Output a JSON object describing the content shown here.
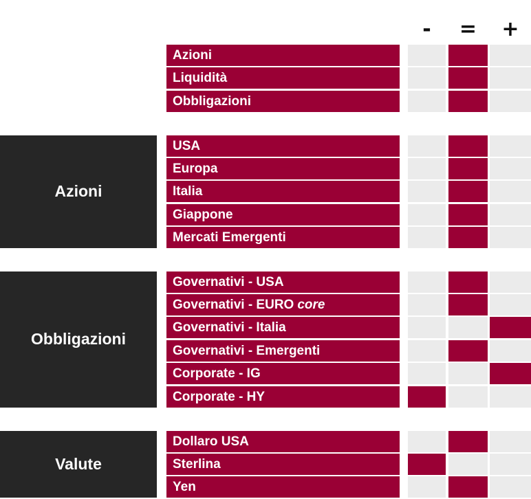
{
  "colors": {
    "accent": "#9a0035",
    "cell_off": "#ebebeb",
    "group_box": "#262626",
    "symbol": "#0f0f0f"
  },
  "chart_data": {
    "type": "table",
    "title": "",
    "columns": [
      {
        "id": "minus",
        "symbol": "-"
      },
      {
        "id": "equal",
        "symbol": "="
      },
      {
        "id": "plus",
        "symbol": "+"
      }
    ],
    "groups": [
      {
        "label": "",
        "rows": [
          {
            "label": "Azioni",
            "rating": "equal"
          },
          {
            "label": "Liquidità",
            "rating": "equal"
          },
          {
            "label": "Obbligazioni",
            "rating": "equal"
          }
        ]
      },
      {
        "label": "Azioni",
        "rows": [
          {
            "label": "USA",
            "rating": "equal"
          },
          {
            "label": "Europa",
            "rating": "equal"
          },
          {
            "label": "Italia",
            "rating": "equal"
          },
          {
            "label": "Giappone",
            "rating": "equal"
          },
          {
            "label": "Mercati Emergenti",
            "rating": "equal"
          }
        ]
      },
      {
        "label": "Obbligazioni",
        "rows": [
          {
            "label": "Governativi - USA",
            "rating": "equal"
          },
          {
            "label": "Governativi - EURO",
            "label_italic": "core",
            "rating": "equal"
          },
          {
            "label": "Governativi - Italia",
            "rating": "plus"
          },
          {
            "label": "Governativi - Emergenti",
            "rating": "equal"
          },
          {
            "label": "Corporate - IG",
            "rating": "plus"
          },
          {
            "label": "Corporate - HY",
            "rating": "minus"
          }
        ]
      },
      {
        "label": "Valute",
        "rows": [
          {
            "label": "Dollaro USA",
            "rating": "equal"
          },
          {
            "label": "Sterlina",
            "rating": "minus"
          },
          {
            "label": "Yen",
            "rating": "equal"
          }
        ]
      }
    ]
  }
}
